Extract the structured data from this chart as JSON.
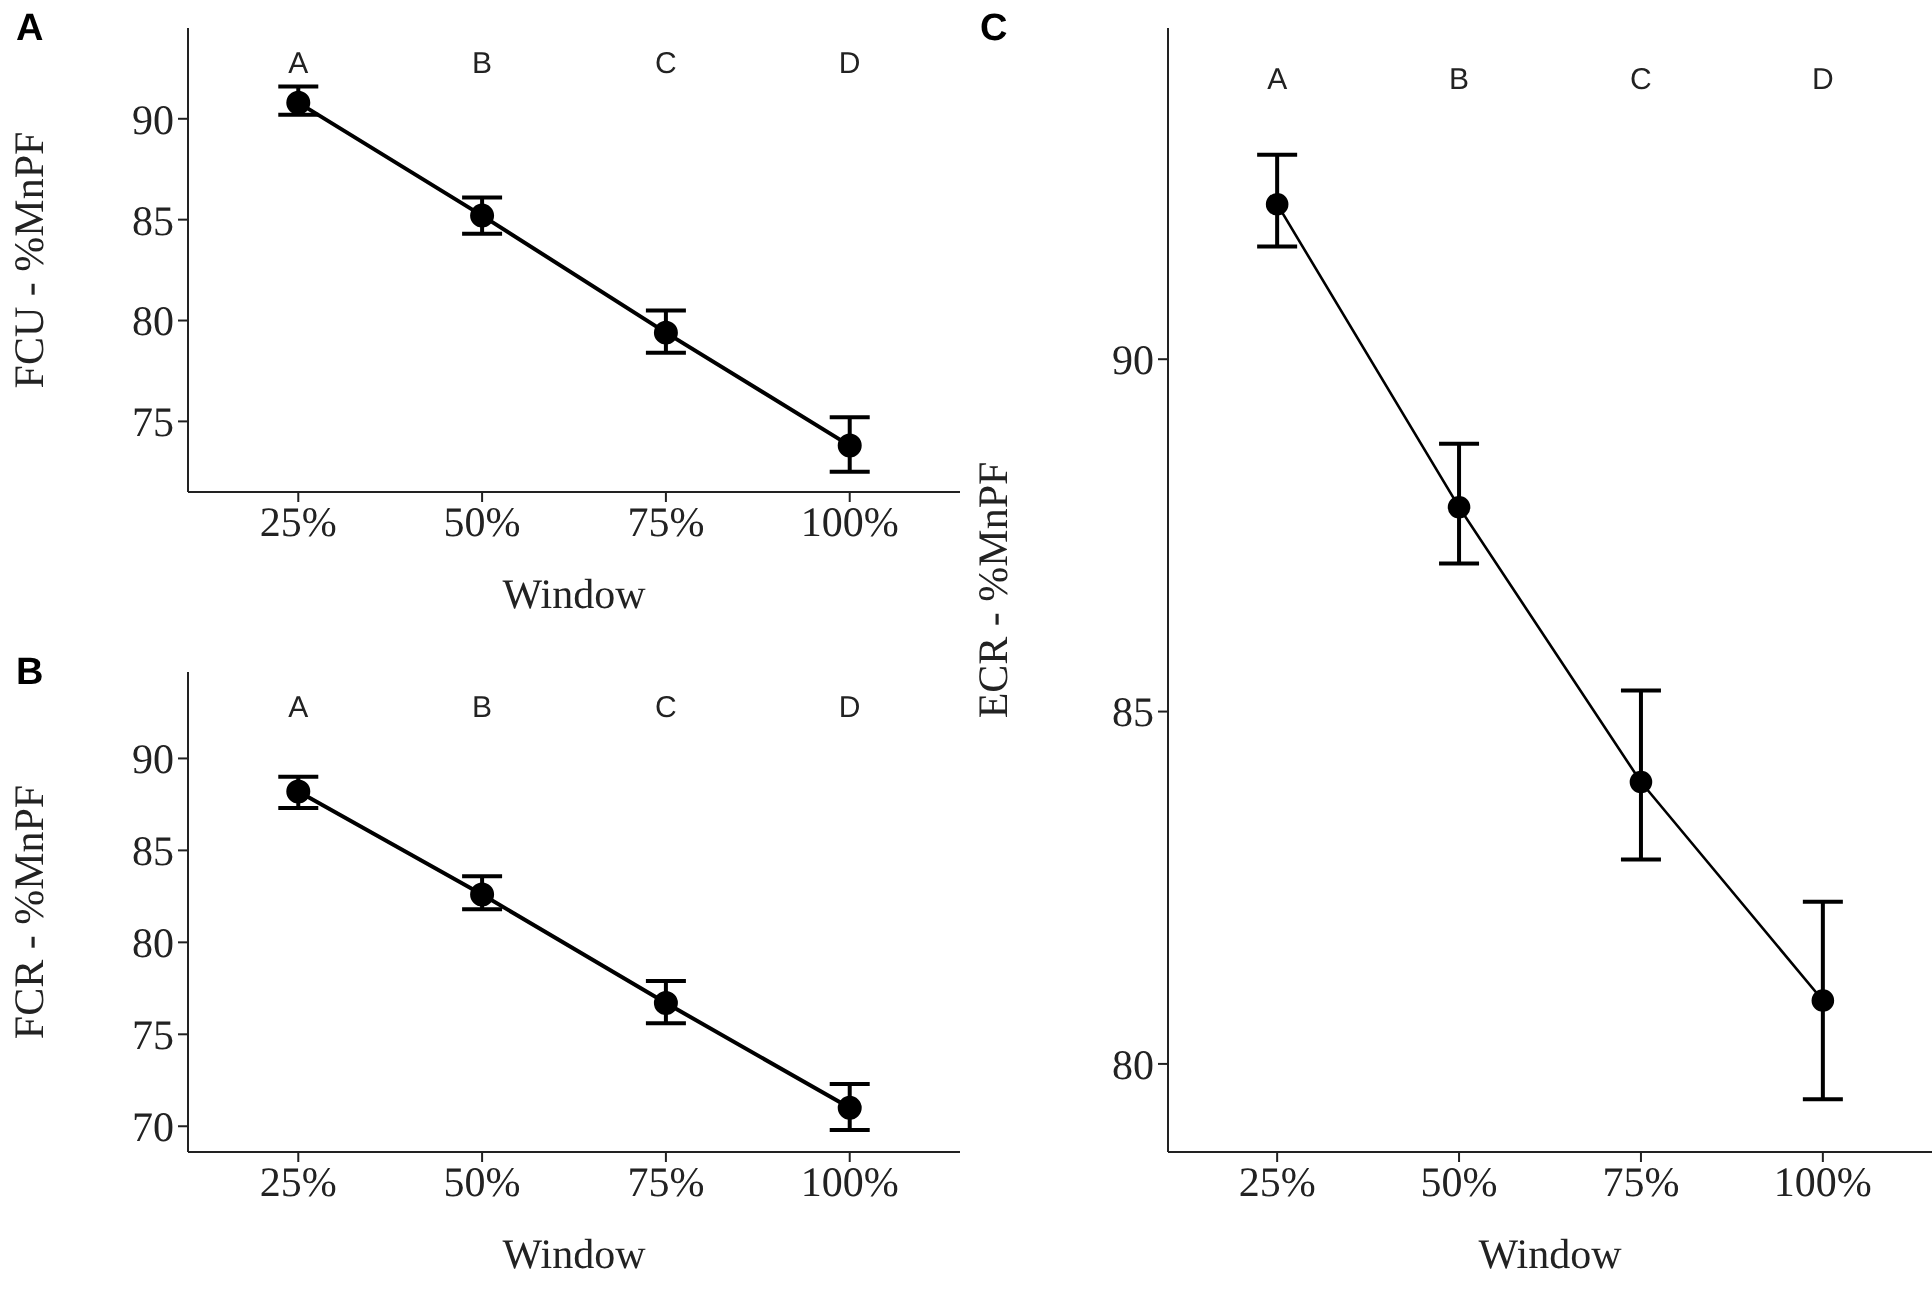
{
  "chart_data": [
    {
      "type": "line",
      "title": "A",
      "xlabel": "Window",
      "ylabel": "FCU - %MnPF",
      "categories": [
        "25%",
        "50%",
        "75%",
        "100%"
      ],
      "series": [
        {
          "color": "#000000",
          "values": [
            90.8,
            85.2,
            79.4,
            73.8
          ],
          "errors": [
            [
              90.2,
              91.6
            ],
            [
              84.3,
              86.1
            ],
            [
              78.4,
              80.5
            ],
            [
              72.5,
              75.2
            ]
          ]
        }
      ],
      "ylim": [
        71.5,
        94.5
      ],
      "yticks": [
        75,
        80,
        85,
        90
      ],
      "grid": false,
      "legend": false,
      "marker": "circle",
      "annotations": [
        "A",
        "B",
        "C",
        "D"
      ]
    },
    {
      "type": "line",
      "title": "B",
      "xlabel": "Window",
      "ylabel": "FCR - %MnPF",
      "categories": [
        "25%",
        "50%",
        "75%",
        "100%"
      ],
      "series": [
        {
          "color": "#000000",
          "values": [
            88.2,
            82.6,
            76.7,
            71.0
          ],
          "errors": [
            [
              87.3,
              89.0
            ],
            [
              81.8,
              83.6
            ],
            [
              75.6,
              77.9
            ],
            [
              69.8,
              72.3
            ]
          ]
        }
      ],
      "ylim": [
        68.6,
        94.7
      ],
      "yticks": [
        70,
        75,
        80,
        85,
        90
      ],
      "grid": false,
      "legend": false,
      "marker": "circle",
      "annotations": [
        "A",
        "B",
        "C",
        "D"
      ]
    },
    {
      "type": "line",
      "title": "C",
      "xlabel": "Window",
      "ylabel": "ECR - %MnPF",
      "categories": [
        "25%",
        "50%",
        "75%",
        "100%"
      ],
      "series": [
        {
          "color": "#000000",
          "values": [
            92.2,
            87.9,
            84.0,
            80.9
          ],
          "errors": [
            [
              91.6,
              92.9
            ],
            [
              87.1,
              88.8
            ],
            [
              82.9,
              85.3
            ],
            [
              79.5,
              82.3
            ]
          ]
        }
      ],
      "ylim": [
        78.75,
        94.7
      ],
      "yticks": [
        80,
        85,
        90
      ],
      "grid": false,
      "legend": false,
      "marker": "circle",
      "annotations": [
        "A",
        "B",
        "C",
        "D"
      ]
    }
  ]
}
